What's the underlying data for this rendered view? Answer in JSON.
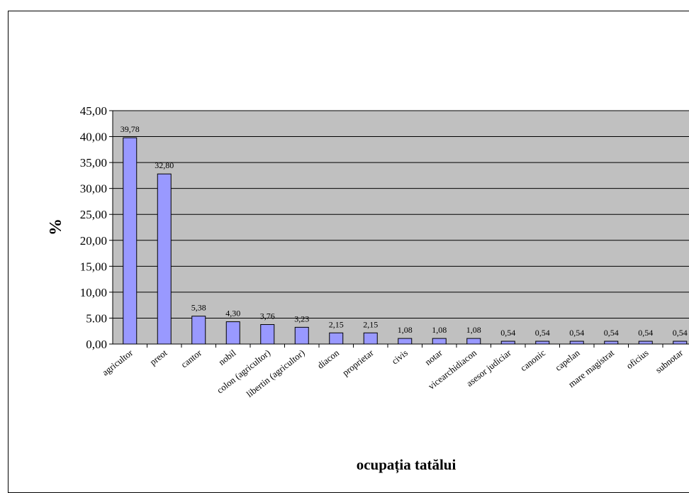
{
  "chart_data": {
    "type": "bar",
    "title": "",
    "xlabel": "ocupația tatălui",
    "ylabel": "%",
    "ylim": [
      0,
      45
    ],
    "yticks": [
      "0,00",
      "5.00",
      "10,00",
      "15,00",
      "20,00",
      "25,00",
      "30,00",
      "35,00",
      "40,00",
      "45,00"
    ],
    "grid": true,
    "plot_background": "#c0c0c0",
    "bar_color": "#9999ff",
    "categories": [
      "agricultor",
      "preot",
      "cantor",
      "nobil",
      "colon (agricultor)",
      "libertin (agricultor)",
      "diacon",
      "proprietar",
      "civis",
      "notar",
      "vicearchidiacon",
      "asesor judiciar",
      "canonic",
      "capelan",
      "mare magistrat",
      "oficius",
      "subnotar"
    ],
    "values": [
      39.78,
      32.8,
      5.38,
      4.3,
      3.76,
      3.23,
      2.15,
      2.15,
      1.08,
      1.08,
      1.08,
      0.54,
      0.54,
      0.54,
      0.54,
      0.54,
      0.54
    ],
    "data_labels": [
      "39,78",
      "32,80",
      "5,38",
      "4,30",
      "3,76",
      "3,23",
      "2,15",
      "2,15",
      "1,08",
      "1,08",
      "1,08",
      "0,54",
      "0,54",
      "0,54",
      "0,54",
      "0,54",
      "0,54"
    ]
  }
}
